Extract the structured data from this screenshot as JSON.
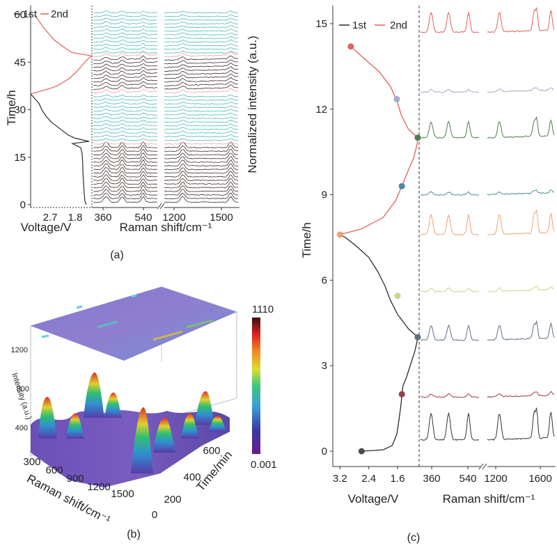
{
  "chart_data": [
    {
      "panel": "a",
      "type": "line",
      "caption": "(a)",
      "legend": [
        "1st",
        "2nd"
      ],
      "legend_colors": [
        "#2b2b2b",
        "#e0605a"
      ],
      "ylabel": "Time/h",
      "ylim": [
        0,
        62
      ],
      "yticks": [
        0,
        15,
        30,
        45,
        60
      ],
      "voltage_axis": {
        "label": "Voltage/V",
        "ticks": [
          "2.7",
          "1.8"
        ],
        "tick_values": [
          2.7,
          1.8
        ],
        "range": [
          3.4,
          1.2
        ]
      },
      "raman_axis": {
        "label": "Raman shift/cm⁻¹",
        "ticks": [
          "360",
          "540",
          "1200",
          "1500"
        ]
      },
      "right_label": "Normalized intensity (a.u.)",
      "voltage_curve": [
        {
          "name": "1st",
          "color": "#2b2b2b",
          "time": [
            0,
            1,
            4,
            7,
            10,
            13,
            16,
            18,
            19.3,
            20,
            21,
            22,
            24,
            26,
            28,
            30,
            32,
            33,
            34,
            35
          ],
          "voltage": [
            1.4,
            1.45,
            1.48,
            1.5,
            1.52,
            1.53,
            1.55,
            1.6,
            1.9,
            1.3,
            1.8,
            2.05,
            2.35,
            2.65,
            2.85,
            3.0,
            3.1,
            3.2,
            3.3,
            3.4
          ]
        },
        {
          "name": "2nd",
          "color": "#e0605a",
          "time": [
            35,
            36,
            37,
            38,
            40,
            42,
            44,
            45,
            46,
            47,
            48,
            50,
            52,
            54,
            56,
            58,
            60
          ],
          "voltage": [
            3.4,
            3.0,
            2.6,
            2.35,
            2.0,
            1.75,
            1.55,
            1.45,
            1.35,
            1.2,
            1.9,
            2.25,
            2.55,
            2.75,
            2.95,
            3.1,
            3.25
          ]
        }
      ],
      "spectra_bands": [
        {
          "from": 0,
          "to": 19,
          "color": "#3a2c28"
        },
        {
          "from": 19,
          "to": 35,
          "color": "#4fb8b8"
        },
        {
          "from": 35,
          "to": 47,
          "color": "#3a2c28"
        },
        {
          "from": 47,
          "to": 61,
          "color": "#4fb8b8"
        }
      ],
      "marker_color": "#f0a0a8",
      "marker_times": [
        19.5,
        35,
        47
      ]
    },
    {
      "panel": "b",
      "type": "surface3d",
      "caption": "(b)",
      "xlabel": "Raman shift/cm⁻¹",
      "xticks": [
        "300",
        "600",
        "900",
        "1200",
        "1500"
      ],
      "ylabel": "Time/min",
      "yticks": [
        "0",
        "200",
        "400",
        "600"
      ],
      "zlabel": "Intensity (a.u.)",
      "zticks": [
        "400",
        "800",
        "1200"
      ],
      "colorbar": {
        "max_label": "1110",
        "min_label": "0.001",
        "max": 1110,
        "min": 0.001
      }
    },
    {
      "panel": "c",
      "type": "line",
      "caption": "(c)",
      "legend": [
        "1st",
        "2nd"
      ],
      "legend_colors": [
        "#2b2b2b",
        "#e0605a"
      ],
      "ylabel": "Time/h",
      "ylim": [
        0,
        15.8
      ],
      "yticks": [
        "0",
        "3",
        "6",
        "9",
        "12",
        "15"
      ],
      "ytick_values": [
        0,
        3,
        6,
        9,
        12,
        15
      ],
      "voltage_axis": {
        "label": "Voltage/V",
        "ticks": [
          "3.2",
          "2.4",
          "1.6"
        ],
        "tick_values": [
          3.2,
          2.4,
          1.6
        ],
        "range": [
          3.4,
          1.0
        ]
      },
      "raman_axis": {
        "label": "Raman shift/cm⁻¹",
        "ticks": [
          "360",
          "540",
          "1200",
          "1600"
        ]
      },
      "voltage_curve": [
        {
          "name": "1st",
          "color": "#2b2b2b",
          "time": [
            0,
            0.05,
            0.2,
            0.6,
            1.2,
            1.7,
            2.0,
            2.3,
            2.6,
            3.0,
            3.5,
            3.9,
            4.0,
            4.3,
            4.8,
            5.3,
            5.8,
            6.3,
            6.8,
            7.2,
            7.5,
            7.6
          ],
          "voltage": [
            2.6,
            2.0,
            1.75,
            1.62,
            1.55,
            1.5,
            1.48,
            1.45,
            1.35,
            1.25,
            1.12,
            1.05,
            1.04,
            1.3,
            1.6,
            1.8,
            1.95,
            2.15,
            2.4,
            2.75,
            3.05,
            3.2
          ]
        },
        {
          "name": "2nd",
          "color": "#e0605a",
          "time": [
            7.6,
            7.8,
            8.2,
            8.8,
            9.3,
            9.8,
            10.3,
            10.8,
            11.0,
            11.3,
            11.8,
            12.3,
            12.8,
            13.3,
            13.8,
            14.2
          ],
          "voltage": [
            3.2,
            2.6,
            2.0,
            1.65,
            1.48,
            1.32,
            1.15,
            1.05,
            1.04,
            1.3,
            1.5,
            1.62,
            1.8,
            2.1,
            2.55,
            2.9
          ]
        }
      ],
      "markers": [
        {
          "time": 0,
          "voltage": 2.6,
          "color": "#4a4a4a"
        },
        {
          "time": 2.0,
          "voltage": 1.48,
          "color": "#9a3f48"
        },
        {
          "time": 4.0,
          "voltage": 1.04,
          "color": "#5f6f82"
        },
        {
          "time": 5.45,
          "voltage": 1.6,
          "color": "#c6d88a"
        },
        {
          "time": 7.6,
          "voltage": 3.2,
          "color": "#f0a070"
        },
        {
          "time": 9.3,
          "voltage": 1.48,
          "color": "#4f8b9a"
        },
        {
          "time": 11.0,
          "voltage": 1.04,
          "color": "#4f7a4f"
        },
        {
          "time": 12.35,
          "voltage": 1.62,
          "color": "#a8a8c8"
        },
        {
          "time": 14.2,
          "voltage": 2.9,
          "color": "#e0605a"
        }
      ],
      "spectra": [
        {
          "time": 0.4,
          "color": "#333333",
          "intensity": 1.0
        },
        {
          "time": 1.9,
          "color": "#9a3f48",
          "intensity": 0.12
        },
        {
          "time": 3.9,
          "color": "#5f6f82",
          "intensity": 0.55
        },
        {
          "time": 5.6,
          "color": "#c6d88a",
          "intensity": 0.12
        },
        {
          "time": 7.6,
          "color": "#f0a070",
          "intensity": 0.75
        },
        {
          "time": 9.0,
          "color": "#4f8b9a",
          "intensity": 0.1
        },
        {
          "time": 11.0,
          "color": "#4f7a4f",
          "intensity": 0.6
        },
        {
          "time": 12.6,
          "color": "#a8a8c8",
          "intensity": 0.1
        },
        {
          "time": 14.7,
          "color": "#e0605a",
          "intensity": 0.75
        }
      ]
    }
  ]
}
